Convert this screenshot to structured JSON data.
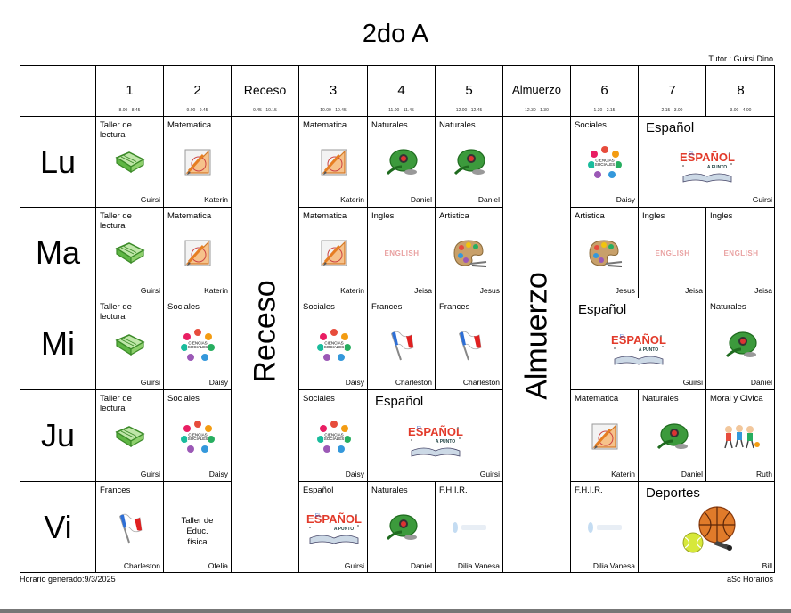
{
  "title": "2do A",
  "tutor": "Tutor : Guirsi  Dino",
  "footer_left": "Horario generado:9/3/2025",
  "footer_right": "aSc Horarios",
  "headers": {
    "p1": {
      "label": "1",
      "time": "8.00 - 8.45"
    },
    "p2": {
      "label": "2",
      "time": "9.00 - 9.45"
    },
    "receso": {
      "label": "Receso",
      "time": "9.45 - 10.15"
    },
    "p3": {
      "label": "3",
      "time": "10.00 - 10.45"
    },
    "p4": {
      "label": "4",
      "time": "11.00 - 11.45"
    },
    "p5": {
      "label": "5",
      "time": "12.00 - 12.45"
    },
    "almuerzo": {
      "label": "Almuerzo",
      "time": "12.30 - 1.30"
    },
    "p6": {
      "label": "6",
      "time": "1.30 - 2.15"
    },
    "p7": {
      "label": "7",
      "time": "2.15 - 3.00"
    },
    "p8": {
      "label": "8",
      "time": "3.00 - 4.00"
    }
  },
  "days": {
    "lu": "Lu",
    "ma": "Ma",
    "mi": "Mi",
    "ju": "Ju",
    "vi": "Vi"
  },
  "receso_vertical": "Receso",
  "almuerzo_vertical": "Almuerzo",
  "lessons": {
    "lu1": {
      "subject": "Taller de lectura",
      "teacher": "Guirsi",
      "icon": "book-icon"
    },
    "lu2": {
      "subject": "Matematica",
      "teacher": "Katerin",
      "icon": "geometry-icon"
    },
    "lu3": {
      "subject": "Matematica",
      "teacher": "Katerin",
      "icon": "geometry-icon"
    },
    "lu4": {
      "subject": "Naturales",
      "teacher": "Daniel",
      "icon": "nature-icon"
    },
    "lu5": {
      "subject": "Naturales",
      "teacher": "Daniel",
      "icon": "nature-icon"
    },
    "lu6": {
      "subject": "Sociales",
      "teacher": "Daisy",
      "icon": "social-icon"
    },
    "lu78": {
      "subject": "Español",
      "teacher": "Guirsi",
      "icon": "spanish-book-icon"
    },
    "ma1": {
      "subject": "Taller de lectura",
      "teacher": "Guirsi",
      "icon": "book-icon"
    },
    "ma2": {
      "subject": "Matematica",
      "teacher": "Katerin",
      "icon": "geometry-icon"
    },
    "ma3": {
      "subject": "Matematica",
      "teacher": "Katerin",
      "icon": "geometry-icon"
    },
    "ma4": {
      "subject": "Ingles",
      "teacher": "Jeisa",
      "icon": "english-icon"
    },
    "ma5": {
      "subject": "Artistica",
      "teacher": "Jesus",
      "icon": "palette-icon"
    },
    "ma6": {
      "subject": "Artistica",
      "teacher": "Jesus",
      "icon": "palette-icon"
    },
    "ma7": {
      "subject": "Ingles",
      "teacher": "Jeisa",
      "icon": "english-icon"
    },
    "ma8": {
      "subject": "Ingles",
      "teacher": "Jeisa",
      "icon": "english-icon"
    },
    "mi1": {
      "subject": "Taller de lectura",
      "teacher": "Guirsi",
      "icon": "book-icon"
    },
    "mi2": {
      "subject": "Sociales",
      "teacher": "Daisy",
      "icon": "social-icon"
    },
    "mi3": {
      "subject": "Sociales",
      "teacher": "Daisy",
      "icon": "social-icon"
    },
    "mi4": {
      "subject": "Frances",
      "teacher": "Charleston",
      "icon": "flag-icon"
    },
    "mi5": {
      "subject": "Frances",
      "teacher": "Charleston",
      "icon": "flag-icon"
    },
    "mi67": {
      "subject": "Español",
      "teacher": "Guirsi",
      "icon": "spanish-book-icon"
    },
    "mi8": {
      "subject": "Naturales",
      "teacher": "Daniel",
      "icon": "nature-icon"
    },
    "ju1": {
      "subject": "Taller de lectura",
      "teacher": "Guirsi",
      "icon": "book-icon"
    },
    "ju2": {
      "subject": "Sociales",
      "teacher": "Daisy",
      "icon": "social-icon"
    },
    "ju3": {
      "subject": "Sociales",
      "teacher": "Daisy",
      "icon": "social-icon"
    },
    "ju45": {
      "subject": "Español",
      "teacher": "Guirsi",
      "icon": "spanish-book-icon"
    },
    "ju6": {
      "subject": "Matematica",
      "teacher": "Katerin",
      "icon": "geometry-icon"
    },
    "ju7": {
      "subject": "Naturales",
      "teacher": "Daniel",
      "icon": "nature-icon"
    },
    "ju8": {
      "subject": "Moral y Civica",
      "teacher": "Ruth",
      "icon": "kids-icon"
    },
    "vi1": {
      "subject": "Frances",
      "teacher": "Charleston",
      "icon": "flag-icon"
    },
    "vi2": {
      "subject": "Taller de Educ. física",
      "teacher": "Ofelia",
      "icon": ""
    },
    "vi3": {
      "subject": "Español",
      "teacher": "Guirsi",
      "icon": "spanish-book-icon"
    },
    "vi4": {
      "subject": "Naturales",
      "teacher": "Daniel",
      "icon": "nature-icon"
    },
    "vi5": {
      "subject": "F.H.I.R.",
      "teacher": "Dilia Vanesa",
      "icon": "faded-logo-icon"
    },
    "vi6": {
      "subject": "F.H.I.R.",
      "teacher": "Dilia Vanesa",
      "icon": "faded-logo-icon"
    },
    "vi78": {
      "subject": "Deportes",
      "teacher": "Bill",
      "icon": "sports-balls-icon"
    }
  }
}
